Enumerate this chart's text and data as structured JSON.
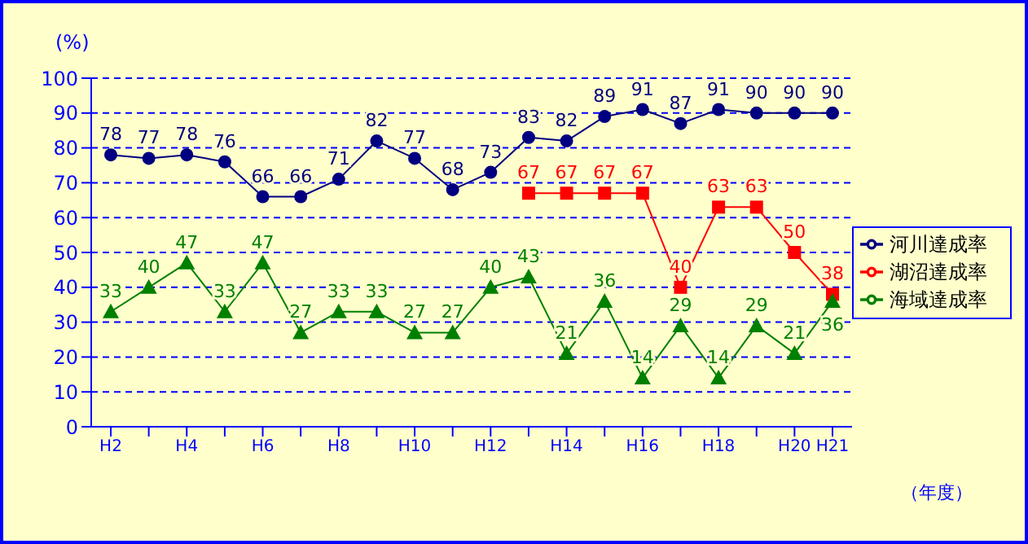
{
  "chart_data": {
    "type": "line",
    "ylabel": "(%)",
    "xlabel": "（年度）",
    "categories": [
      "H2",
      null,
      "H4",
      null,
      "H6",
      null,
      "H8",
      null,
      "H10",
      null,
      "H12",
      null,
      "H14",
      null,
      "H16",
      null,
      "H18",
      null,
      "H20",
      "H21"
    ],
    "series": [
      {
        "name": "河川達成率",
        "color": "#000080",
        "marker": "circle",
        "values": [
          78,
          77,
          78,
          76,
          66,
          66,
          71,
          82,
          77,
          68,
          73,
          83,
          82,
          89,
          91,
          87,
          91,
          90,
          90,
          90
        ]
      },
      {
        "name": "湖沼達成率",
        "color": "#ff0000",
        "marker": "square",
        "values": [
          null,
          null,
          null,
          null,
          null,
          null,
          null,
          null,
          null,
          null,
          null,
          67,
          67,
          67,
          67,
          40,
          63,
          63,
          50,
          38
        ]
      },
      {
        "name": "海域達成率",
        "color": "#008000",
        "marker": "triangle",
        "values": [
          33,
          40,
          47,
          33,
          47,
          27,
          33,
          33,
          27,
          27,
          40,
          43,
          21,
          36,
          14,
          29,
          14,
          29,
          21,
          36
        ]
      }
    ],
    "ylim": [
      0,
      100
    ],
    "yticks": [
      0,
      10,
      20,
      30,
      40,
      50,
      60,
      70,
      80,
      90,
      100
    ],
    "grid": "y",
    "legend": "right",
    "data_labels": true
  }
}
